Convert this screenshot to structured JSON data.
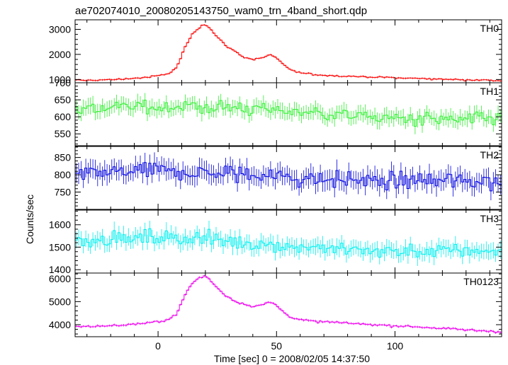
{
  "chart_data": {
    "type": "line",
    "title": "ae702074010_20080205143750_wam0_trn_4band_short.qdp",
    "xlabel": "Time [sec] 0 = 2008/02/05 14:37:50",
    "ylabel": "Counts/sec",
    "xlim": [
      -35,
      145
    ],
    "xticks": [
      0,
      50,
      100
    ],
    "grid": false,
    "bin_width_sec": 1,
    "panels": [
      {
        "name": "TH0",
        "color": "#ff0000",
        "ylim": [
          870,
          3380
        ],
        "yticks": [
          1000,
          2000,
          3000
        ],
        "keypoints": [
          [
            -35,
            960
          ],
          [
            -20,
            990
          ],
          [
            -5,
            1080
          ],
          [
            0,
            1150
          ],
          [
            5,
            1250
          ],
          [
            8,
            1500
          ],
          [
            11,
            2200
          ],
          [
            14,
            2750
          ],
          [
            17,
            3050
          ],
          [
            19,
            3200
          ],
          [
            21,
            3150
          ],
          [
            24,
            2800
          ],
          [
            28,
            2400
          ],
          [
            32,
            2150
          ],
          [
            36,
            1900
          ],
          [
            40,
            1800
          ],
          [
            44,
            1850
          ],
          [
            47,
            2000
          ],
          [
            50,
            1850
          ],
          [
            54,
            1500
          ],
          [
            58,
            1300
          ],
          [
            65,
            1200
          ],
          [
            75,
            1150
          ],
          [
            90,
            1100
          ],
          [
            110,
            1040
          ],
          [
            130,
            990
          ],
          [
            145,
            960
          ]
        ],
        "noise": 40
      },
      {
        "name": "TH1",
        "color": "#33ee33",
        "ylim": [
          515,
          700
        ],
        "yticks": [
          550,
          600,
          650,
          700
        ],
        "keypoints": [
          [
            -35,
            625
          ],
          [
            0,
            630
          ],
          [
            20,
            628
          ],
          [
            40,
            625
          ],
          [
            60,
            615
          ],
          [
            80,
            605
          ],
          [
            100,
            595
          ],
          [
            120,
            590
          ],
          [
            145,
            595
          ]
        ],
        "noise": 25
      },
      {
        "name": "TH2",
        "color": "#0000dd",
        "ylim": [
          700,
          882
        ],
        "yticks": [
          750,
          800,
          850
        ],
        "keypoints": [
          [
            -35,
            800
          ],
          [
            0,
            810
          ],
          [
            20,
            805
          ],
          [
            40,
            800
          ],
          [
            60,
            790
          ],
          [
            80,
            785
          ],
          [
            100,
            780
          ],
          [
            120,
            782
          ],
          [
            145,
            780
          ]
        ],
        "noise": 32
      },
      {
        "name": "TH3",
        "color": "#00eeee",
        "ylim": [
          1385,
          1665
        ],
        "yticks": [
          1400,
          1500,
          1600
        ],
        "keypoints": [
          [
            -35,
            1530
          ],
          [
            -20,
            1540
          ],
          [
            0,
            1540
          ],
          [
            15,
            1545
          ],
          [
            30,
            1525
          ],
          [
            50,
            1510
          ],
          [
            70,
            1495
          ],
          [
            90,
            1485
          ],
          [
            110,
            1480
          ],
          [
            130,
            1485
          ],
          [
            145,
            1480
          ]
        ],
        "noise": 40
      },
      {
        "name": "TH0123",
        "color": "#ee00ee",
        "ylim": [
          3480,
          6240
        ],
        "yticks": [
          4000,
          5000,
          6000
        ],
        "keypoints": [
          [
            -35,
            3920
          ],
          [
            -20,
            3950
          ],
          [
            -5,
            4060
          ],
          [
            0,
            4130
          ],
          [
            5,
            4250
          ],
          [
            8,
            4500
          ],
          [
            11,
            5200
          ],
          [
            14,
            5750
          ],
          [
            17,
            6000
          ],
          [
            19,
            6100
          ],
          [
            21,
            6050
          ],
          [
            24,
            5700
          ],
          [
            28,
            5300
          ],
          [
            32,
            5050
          ],
          [
            36,
            4900
          ],
          [
            40,
            4800
          ],
          [
            44,
            4850
          ],
          [
            47,
            4980
          ],
          [
            50,
            4850
          ],
          [
            54,
            4450
          ],
          [
            58,
            4250
          ],
          [
            65,
            4150
          ],
          [
            75,
            4100
          ],
          [
            90,
            4000
          ],
          [
            110,
            3900
          ],
          [
            130,
            3780
          ],
          [
            145,
            3700
          ]
        ],
        "noise": 55
      }
    ]
  }
}
